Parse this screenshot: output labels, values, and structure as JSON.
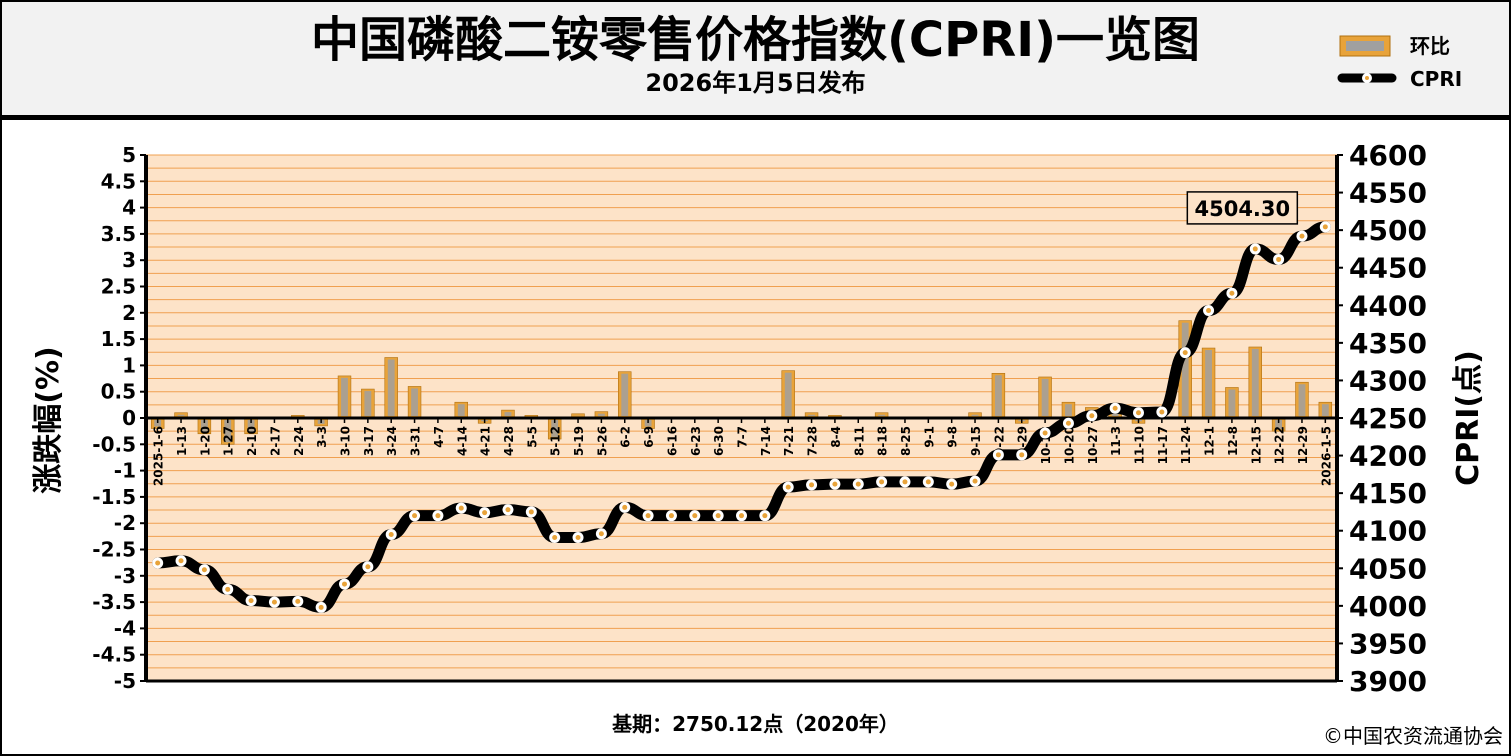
{
  "header": {
    "title": "中国磷酸二铵零售价格指数(CPRI)一览图",
    "subtitle": "2026年1月5日发布"
  },
  "footer": {
    "base_note": "基期：2750.12点（2020年）",
    "copyright": "©中国农资流通协会"
  },
  "colors": {
    "bar": "#e8a33a",
    "bar_inner": "#a0a0a0",
    "line": "#000000",
    "marker_fill": "#ffffff",
    "marker_dot": "#e8a33a",
    "plot_bg": "#fde3c8",
    "grid": "#f0a050"
  },
  "chart_data": {
    "type": "bar+line",
    "legend": [
      "环比",
      "CPRI"
    ],
    "legend_position": "top-right",
    "grid": true,
    "ylabel_left": "涨跌幅(%)",
    "ylabel_right": "CPRI(点)",
    "ylim_left": [
      -5,
      5
    ],
    "ylim_right": [
      3900,
      4600
    ],
    "yticks_left": [
      "5",
      "4.5",
      "4",
      "3.5",
      "3",
      "2.5",
      "2",
      "1.5",
      "1",
      "0.5",
      "0",
      "-0.5",
      "-1",
      "-1.5",
      "-2",
      "-2.5",
      "-3",
      "-3.5",
      "-4",
      "-4.5",
      "-5"
    ],
    "yticks_right": [
      "4600",
      "4550",
      "4500",
      "4450",
      "4400",
      "4350",
      "4300",
      "4250",
      "4200",
      "4150",
      "4100",
      "4050",
      "4000",
      "3950",
      "3900"
    ],
    "categories": [
      "2025-1-6",
      "1-13",
      "1-20",
      "1-27",
      "2-10",
      "2-17",
      "2-24",
      "3-3",
      "3-10",
      "3-17",
      "3-24",
      "3-31",
      "4-7",
      "4-14",
      "4-21",
      "4-28",
      "5-5",
      "5-12",
      "5-19",
      "5-26",
      "6-2",
      "6-9",
      "6-16",
      "6-23",
      "6-30",
      "7-7",
      "7-14",
      "7-21",
      "7-28",
      "8-4",
      "8-11",
      "8-18",
      "8-25",
      "9-1",
      "9-8",
      "9-15",
      "9-22",
      "9-29",
      "10-13",
      "10-20",
      "10-27",
      "11-3",
      "11-10",
      "11-17",
      "11-24",
      "12-1",
      "12-8",
      "12-15",
      "12-22",
      "12-29",
      "2026-1-5"
    ],
    "series": [
      {
        "name": "环比",
        "type": "bar",
        "values": [
          -0.2,
          0.1,
          -0.3,
          -0.5,
          -0.3,
          0.0,
          0.05,
          -0.15,
          0.8,
          0.55,
          1.15,
          0.6,
          0.0,
          0.3,
          -0.1,
          0.15,
          0.05,
          -0.4,
          0.08,
          0.12,
          0.88,
          -0.2,
          0.0,
          0.02,
          0.0,
          0.02,
          0.0,
          0.9,
          0.1,
          0.05,
          0.02,
          0.1,
          0.0,
          0.0,
          0.0,
          0.1,
          0.85,
          -0.1,
          0.78,
          0.3,
          0.2,
          0.25,
          -0.1,
          0.0,
          1.85,
          1.33,
          0.58,
          1.35,
          -0.25,
          0.68,
          0.3
        ]
      },
      {
        "name": "CPRI",
        "type": "line",
        "values": [
          4057,
          4060,
          4048,
          4022,
          4007,
          4005,
          4006,
          3998,
          4029,
          4052,
          4095,
          4120,
          4120,
          4130,
          4124,
          4128,
          4125,
          4091,
          4091,
          4096,
          4131,
          4120,
          4120,
          4120,
          4120,
          4120,
          4120,
          4158,
          4161,
          4162,
          4162,
          4165,
          4165,
          4165,
          4162,
          4166,
          4201,
          4201,
          4230,
          4243,
          4253,
          4263,
          4257,
          4258,
          4337,
          4393,
          4416,
          4475,
          4461,
          4492,
          4504.3
        ]
      }
    ],
    "annotation": "4504.30"
  }
}
